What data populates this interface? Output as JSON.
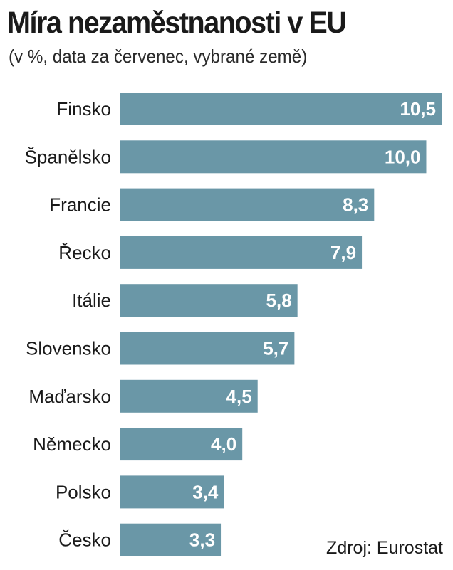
{
  "title": "Míra nezaměstnanosti v EU",
  "subtitle": "(v %, data za červenec, vybrané země)",
  "source": "Zdroj: Eurostat",
  "colors": {
    "bar": "#6a97a7",
    "label_on_bar": "#ffffff",
    "text": "#1a1a1a"
  },
  "chart_data": {
    "type": "bar",
    "orientation": "horizontal",
    "title": "Míra nezaměstnanosti v EU",
    "subtitle": "(v %, data za červenec, vybrané země)",
    "categories": [
      "Finsko",
      "Španělsko",
      "Francie",
      "Řecko",
      "Itálie",
      "Slovensko",
      "Maďarsko",
      "Německo",
      "Polsko",
      "Česko"
    ],
    "values": [
      10.5,
      10.0,
      8.3,
      7.9,
      5.8,
      5.7,
      4.5,
      4.0,
      3.4,
      3.3
    ],
    "value_labels": [
      "10,5",
      "10,0",
      "8,3",
      "7,9",
      "5,8",
      "5,7",
      "4,5",
      "4,0",
      "3,4",
      "3,3"
    ],
    "xlim": [
      0,
      10.5
    ],
    "grid": false,
    "legend": "none"
  }
}
